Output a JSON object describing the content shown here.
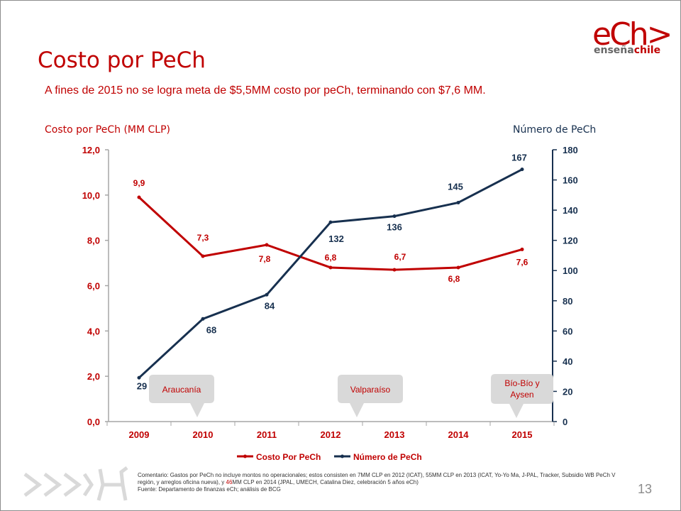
{
  "slide": {
    "title": "Costo por PeCh",
    "subtitle": "A fines de 2015 no se logra meta de $5,5MM costo por peCh, terminando con $7,6 MM.",
    "left_axis_title": "Costo por PeCh (MM CLP)",
    "right_axis_title": "Número de PeCh",
    "logo_main": "eCh>",
    "logo_sub_a": "enseña",
    "logo_sub_b": "chile",
    "page_number": "13",
    "comment_part1": "Comentario: Gastos por PeCh no incluye montos no operacionales; estos consisten en 7MM CLP en 2012 (ICAT), 55MM CLP en 2013 (ICAT, Yo-Yo Ma, J-PAL, Tracker, Subsidio WB PeCh V región, y arreglos oficina nueva), y ",
    "comment_highlight": "46",
    "comment_part2": "MM CLP en 2014 (JPAL, UMECH, Catalina Diez, celebración 5 años eCh)",
    "source": "Fuente: Departamento de finanzas eCh; análisis de BCG"
  },
  "colors": {
    "cost": "#c00000",
    "count": "#17304f",
    "callout": "#d9d9d9",
    "callout_text": "#c00000",
    "axis": "#a6a6a6"
  },
  "chart_data": {
    "type": "line",
    "categories": [
      "2009",
      "2010",
      "2011",
      "2012",
      "2013",
      "2014",
      "2015"
    ],
    "series": [
      {
        "name": "Costo Por PeCh",
        "axis": "left",
        "values": [
          9.9,
          7.3,
          7.8,
          6.8,
          6.7,
          6.8,
          7.6
        ],
        "labels": [
          "9,9",
          "7,3",
          "7,8",
          "6,8",
          "6,7",
          "6,8",
          "7,6"
        ]
      },
      {
        "name": "Número de PeCh",
        "axis": "right",
        "values": [
          29,
          68,
          84,
          132,
          136,
          145,
          167
        ],
        "labels": [
          "29",
          "68",
          "84",
          "132",
          "136",
          "145",
          "167"
        ]
      }
    ],
    "left_axis": {
      "min": 0,
      "max": 12,
      "ticks": [
        0,
        2,
        4,
        6,
        8,
        10,
        12
      ],
      "tick_labels": [
        "0,0",
        "2,0",
        "4,0",
        "6,0",
        "8,0",
        "10,0",
        "12,0"
      ]
    },
    "right_axis": {
      "min": 0,
      "max": 180,
      "ticks": [
        0,
        20,
        40,
        60,
        80,
        100,
        120,
        140,
        160,
        180
      ],
      "tick_labels": [
        "0",
        "20",
        "40",
        "60",
        "80",
        "100",
        "120",
        "140",
        "160",
        "180"
      ]
    },
    "grid": false,
    "legend": {
      "position": "bottom",
      "entries": [
        "Costo Por PeCh",
        "Número de PeCh"
      ]
    },
    "annotations": [
      {
        "text": [
          "Araucanía"
        ],
        "year": "2010"
      },
      {
        "text": [
          "Valparaíso"
        ],
        "year": "2012"
      },
      {
        "text": [
          "Bío-Bío y",
          "Aysen"
        ],
        "year": "2015"
      }
    ]
  }
}
